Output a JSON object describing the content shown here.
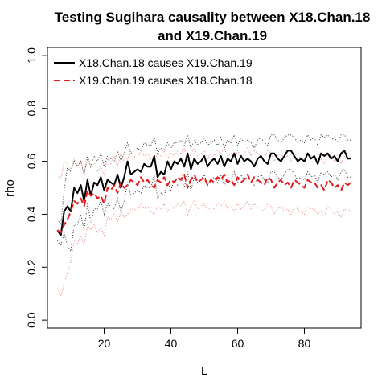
{
  "chart_data": {
    "type": "line",
    "title_line1": "Testing Sugihara causality between  X18.Chan.18",
    "title_line2": "and X19.Chan.19",
    "xlabel": "L",
    "ylabel": "rho",
    "xlim": [
      3,
      97
    ],
    "ylim": [
      -0.03,
      1.03
    ],
    "xticks": [
      "20",
      "40",
      "60",
      "80"
    ],
    "yticks": [
      "0.0",
      "0.2",
      "0.4",
      "0.6",
      "0.8",
      "1.0"
    ],
    "legend_position": "top-left",
    "series": [
      {
        "name": "X18.Chan.18 causes X19.Chan.19",
        "color": "#000000",
        "style": "solid",
        "x": [
          6,
          7,
          8,
          9,
          10,
          11,
          12,
          13,
          14,
          15,
          16,
          17,
          18,
          19,
          20,
          21,
          22,
          23,
          24,
          25,
          26,
          27,
          28,
          29,
          30,
          31,
          32,
          33,
          34,
          35,
          36,
          37,
          38,
          39,
          40,
          41,
          42,
          43,
          44,
          45,
          46,
          47,
          48,
          49,
          50,
          51,
          52,
          53,
          54,
          55,
          56,
          57,
          58,
          59,
          60,
          61,
          62,
          63,
          64,
          65,
          66,
          67,
          68,
          69,
          70,
          71,
          72,
          73,
          74,
          75,
          76,
          77,
          78,
          79,
          80,
          81,
          82,
          83,
          84,
          85,
          86,
          87,
          88,
          89,
          90,
          91,
          92,
          93,
          94
        ],
        "y": [
          0.34,
          0.32,
          0.41,
          0.43,
          0.41,
          0.5,
          0.48,
          0.51,
          0.45,
          0.53,
          0.47,
          0.52,
          0.51,
          0.54,
          0.49,
          0.53,
          0.52,
          0.51,
          0.55,
          0.5,
          0.54,
          0.6,
          0.55,
          0.56,
          0.57,
          0.56,
          0.59,
          0.58,
          0.58,
          0.62,
          0.54,
          0.56,
          0.55,
          0.6,
          0.57,
          0.6,
          0.59,
          0.61,
          0.58,
          0.63,
          0.57,
          0.61,
          0.59,
          0.6,
          0.62,
          0.58,
          0.6,
          0.61,
          0.59,
          0.62,
          0.58,
          0.61,
          0.6,
          0.63,
          0.59,
          0.62,
          0.6,
          0.61,
          0.6,
          0.58,
          0.61,
          0.62,
          0.6,
          0.59,
          0.63,
          0.63,
          0.61,
          0.6,
          0.62,
          0.64,
          0.64,
          0.62,
          0.6,
          0.61,
          0.6,
          0.63,
          0.61,
          0.62,
          0.59,
          0.63,
          0.62,
          0.63,
          0.61,
          0.62,
          0.6,
          0.63,
          0.64,
          0.61,
          0.61
        ],
        "band_upper": [
          0.38,
          0.36,
          0.49,
          0.58,
          0.56,
          0.6,
          0.58,
          0.6,
          0.55,
          0.62,
          0.58,
          0.62,
          0.6,
          0.63,
          0.58,
          0.62,
          0.61,
          0.6,
          0.64,
          0.6,
          0.63,
          0.67,
          0.63,
          0.64,
          0.65,
          0.64,
          0.67,
          0.66,
          0.66,
          0.69,
          0.63,
          0.65,
          0.64,
          0.67,
          0.65,
          0.67,
          0.67,
          0.68,
          0.66,
          0.7,
          0.65,
          0.68,
          0.66,
          0.67,
          0.69,
          0.66,
          0.67,
          0.68,
          0.66,
          0.69,
          0.65,
          0.68,
          0.67,
          0.7,
          0.66,
          0.69,
          0.67,
          0.68,
          0.67,
          0.65,
          0.68,
          0.69,
          0.67,
          0.66,
          0.7,
          0.7,
          0.68,
          0.67,
          0.69,
          0.7,
          0.7,
          0.69,
          0.67,
          0.68,
          0.67,
          0.7,
          0.68,
          0.69,
          0.66,
          0.7,
          0.69,
          0.7,
          0.68,
          0.69,
          0.67,
          0.7,
          0.7,
          0.68,
          0.68
        ],
        "band_lower": [
          0.3,
          0.28,
          0.33,
          0.28,
          0.26,
          0.36,
          0.36,
          0.4,
          0.34,
          0.44,
          0.37,
          0.42,
          0.42,
          0.45,
          0.4,
          0.44,
          0.43,
          0.42,
          0.46,
          0.41,
          0.45,
          0.52,
          0.47,
          0.48,
          0.49,
          0.48,
          0.51,
          0.5,
          0.5,
          0.55,
          0.46,
          0.48,
          0.47,
          0.52,
          0.49,
          0.53,
          0.51,
          0.54,
          0.5,
          0.56,
          0.49,
          0.54,
          0.52,
          0.53,
          0.55,
          0.51,
          0.53,
          0.54,
          0.52,
          0.55,
          0.51,
          0.54,
          0.53,
          0.56,
          0.52,
          0.55,
          0.53,
          0.54,
          0.53,
          0.51,
          0.54,
          0.55,
          0.53,
          0.52,
          0.56,
          0.56,
          0.54,
          0.53,
          0.55,
          0.57,
          0.57,
          0.55,
          0.53,
          0.54,
          0.53,
          0.56,
          0.54,
          0.55,
          0.52,
          0.56,
          0.55,
          0.56,
          0.54,
          0.55,
          0.53,
          0.56,
          0.57,
          0.54,
          0.54
        ]
      },
      {
        "name": "X19.Chan.19 causes X18.Chan.18",
        "color": "#e41a1c",
        "style": "dashed",
        "x": [
          6,
          7,
          8,
          9,
          10,
          11,
          12,
          13,
          14,
          15,
          16,
          17,
          18,
          19,
          20,
          21,
          22,
          23,
          24,
          25,
          26,
          27,
          28,
          29,
          30,
          31,
          32,
          33,
          34,
          35,
          36,
          37,
          38,
          39,
          40,
          41,
          42,
          43,
          44,
          45,
          46,
          47,
          48,
          49,
          50,
          51,
          52,
          53,
          54,
          55,
          56,
          57,
          58,
          59,
          60,
          61,
          62,
          63,
          64,
          65,
          66,
          67,
          68,
          69,
          70,
          71,
          72,
          73,
          74,
          75,
          76,
          77,
          78,
          79,
          80,
          81,
          82,
          83,
          84,
          85,
          86,
          87,
          88,
          89,
          90,
          91,
          92,
          93,
          94
        ],
        "y": [
          0.34,
          0.33,
          0.36,
          0.38,
          0.41,
          0.45,
          0.44,
          0.46,
          0.43,
          0.49,
          0.47,
          0.48,
          0.46,
          0.47,
          0.44,
          0.5,
          0.49,
          0.51,
          0.48,
          0.52,
          0.5,
          0.51,
          0.53,
          0.52,
          0.51,
          0.54,
          0.52,
          0.53,
          0.51,
          0.5,
          0.53,
          0.52,
          0.54,
          0.51,
          0.53,
          0.52,
          0.54,
          0.53,
          0.55,
          0.5,
          0.53,
          0.55,
          0.52,
          0.53,
          0.54,
          0.51,
          0.53,
          0.52,
          0.54,
          0.53,
          0.55,
          0.52,
          0.53,
          0.51,
          0.54,
          0.52,
          0.53,
          0.55,
          0.52,
          0.54,
          0.53,
          0.52,
          0.51,
          0.54,
          0.53,
          0.5,
          0.52,
          0.53,
          0.51,
          0.52,
          0.5,
          0.53,
          0.52,
          0.51,
          0.5,
          0.53,
          0.52,
          0.52,
          0.5,
          0.51,
          0.49,
          0.53,
          0.52,
          0.5,
          0.51,
          0.49,
          0.52,
          0.51,
          0.52
        ],
        "band_upper": [
          0.55,
          0.53,
          0.6,
          0.59,
          0.57,
          0.61,
          0.58,
          0.6,
          0.55,
          0.61,
          0.58,
          0.59,
          0.56,
          0.58,
          0.55,
          0.61,
          0.59,
          0.62,
          0.58,
          0.63,
          0.6,
          0.61,
          0.63,
          0.62,
          0.61,
          0.64,
          0.62,
          0.63,
          0.61,
          0.6,
          0.63,
          0.62,
          0.64,
          0.61,
          0.63,
          0.62,
          0.64,
          0.63,
          0.65,
          0.6,
          0.63,
          0.65,
          0.62,
          0.63,
          0.64,
          0.61,
          0.63,
          0.62,
          0.64,
          0.63,
          0.65,
          0.62,
          0.63,
          0.61,
          0.64,
          0.62,
          0.63,
          0.65,
          0.62,
          0.64,
          0.63,
          0.62,
          0.61,
          0.64,
          0.63,
          0.6,
          0.62,
          0.63,
          0.61,
          0.62,
          0.6,
          0.63,
          0.62,
          0.61,
          0.6,
          0.63,
          0.62,
          0.62,
          0.6,
          0.61,
          0.59,
          0.63,
          0.62,
          0.6,
          0.61,
          0.59,
          0.62,
          0.61,
          0.62
        ],
        "band_lower": [
          0.12,
          0.09,
          0.14,
          0.18,
          0.22,
          0.3,
          0.29,
          0.32,
          0.28,
          0.36,
          0.34,
          0.36,
          0.33,
          0.35,
          0.32,
          0.39,
          0.38,
          0.4,
          0.37,
          0.41,
          0.39,
          0.4,
          0.42,
          0.42,
          0.41,
          0.44,
          0.42,
          0.43,
          0.41,
          0.4,
          0.43,
          0.42,
          0.44,
          0.41,
          0.43,
          0.42,
          0.44,
          0.43,
          0.45,
          0.4,
          0.43,
          0.45,
          0.42,
          0.43,
          0.44,
          0.41,
          0.43,
          0.42,
          0.44,
          0.43,
          0.45,
          0.42,
          0.43,
          0.41,
          0.44,
          0.42,
          0.43,
          0.45,
          0.42,
          0.44,
          0.43,
          0.42,
          0.41,
          0.44,
          0.43,
          0.4,
          0.42,
          0.43,
          0.41,
          0.42,
          0.4,
          0.43,
          0.42,
          0.41,
          0.4,
          0.43,
          0.42,
          0.42,
          0.4,
          0.41,
          0.39,
          0.43,
          0.42,
          0.4,
          0.41,
          0.39,
          0.42,
          0.41,
          0.42
        ]
      }
    ]
  }
}
